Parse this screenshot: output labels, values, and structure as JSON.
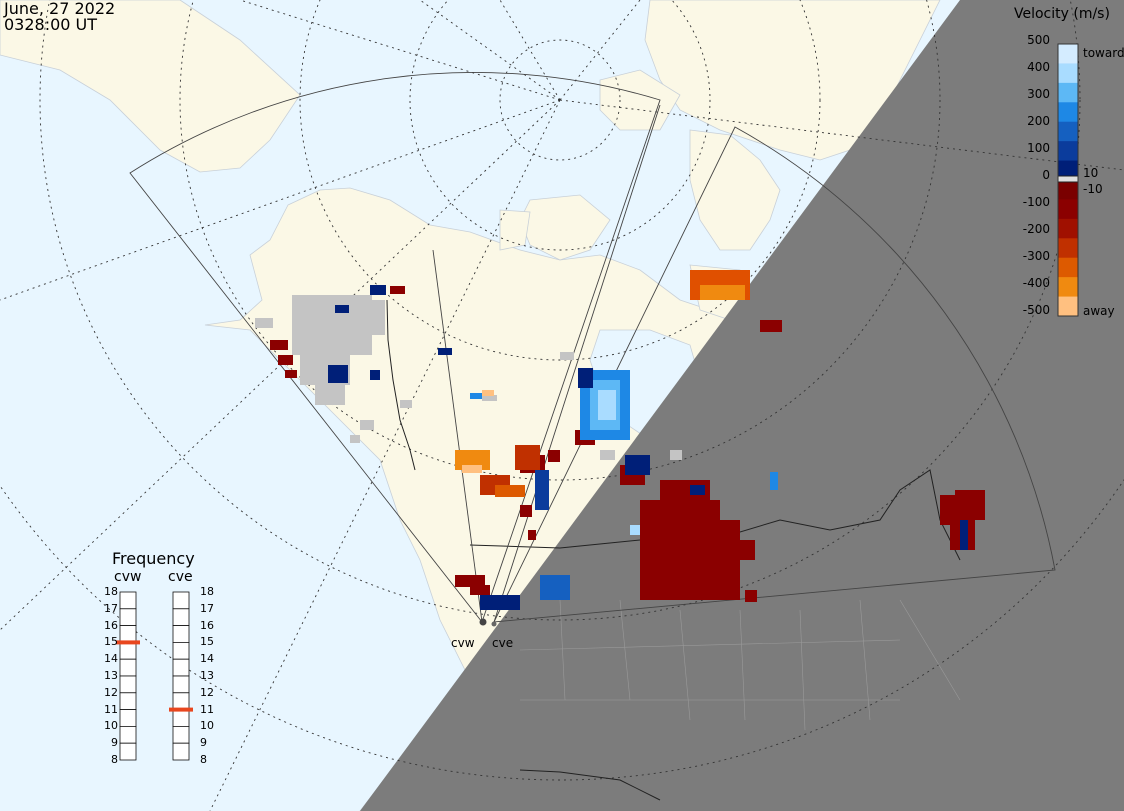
{
  "header": {
    "date": "June, 27 2022",
    "time": "0328:00 UT"
  },
  "legend": {
    "title": "Velocity (m/s)",
    "ticks": [
      "500",
      "400",
      "300",
      "200",
      "100",
      "0",
      "-100",
      "-200",
      "-300",
      "-400",
      "-500"
    ],
    "toward_label": "toward",
    "away_label": "away",
    "threshold_pos": "10",
    "threshold_neg": "-10",
    "colors": [
      "#d4ecff",
      "#a9dcff",
      "#5db8f5",
      "#1e88e5",
      "#1560c0",
      "#0b3c9c",
      "#001f78",
      "#7a0000",
      "#8b0000",
      "#a01000",
      "#c03000",
      "#dd5a00",
      "#f08a10",
      "#ffc080"
    ]
  },
  "frequency": {
    "title": "Frequency",
    "radars": [
      {
        "name": "cvw",
        "selected": "15"
      },
      {
        "name": "cve",
        "selected": "11"
      }
    ],
    "values": [
      "18",
      "17",
      "16",
      "15",
      "14",
      "13",
      "12",
      "11",
      "10",
      "9",
      "8"
    ]
  },
  "radar_sites": [
    {
      "name": "cvw"
    },
    {
      "name": "cve"
    }
  ],
  "colors": {
    "ocean": "#e8f6ff",
    "land": "#fbf8e6",
    "night": "#7a7a7a",
    "ground_scatter": "#c4c4c4",
    "frequency_marker": "#e8461e"
  }
}
